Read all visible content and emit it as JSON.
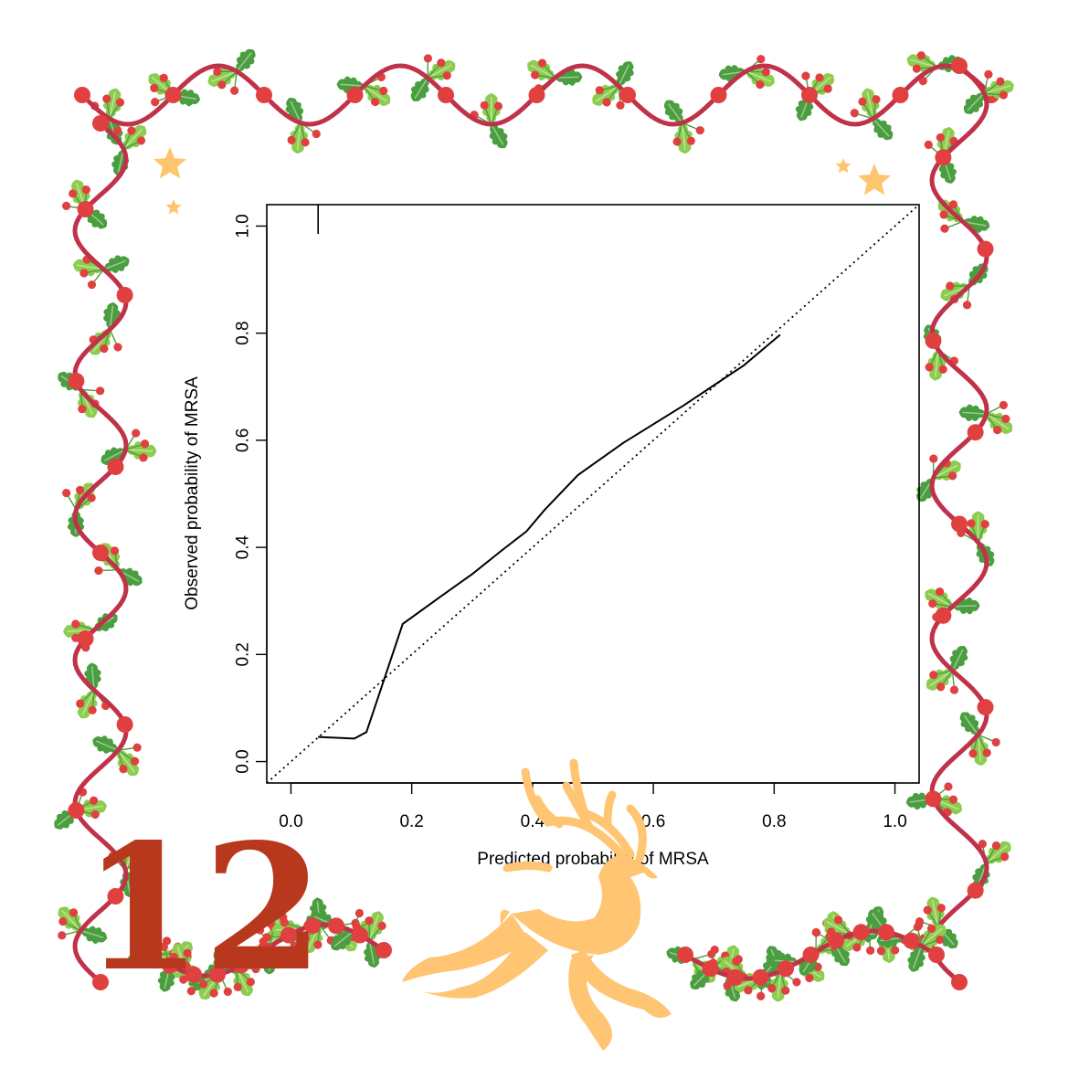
{
  "badge": {
    "number": "12"
  },
  "colors": {
    "garland": "#c0324a",
    "berry": "#e04040",
    "leaf_light": "#8ccd4f",
    "leaf_dark": "#4a9e3f",
    "star": "#ffc46e",
    "deer": "#ffc573",
    "number": "#b7381d"
  },
  "decorations": [
    "holly-garland-frame",
    "berry-clusters",
    "star-icon",
    "reindeer-silhouette"
  ],
  "chart_data": {
    "type": "line",
    "xlabel": "Predicted probability of MRSA",
    "ylabel": "Observed probability of MRSA",
    "xlim": [
      -0.04,
      1.04
    ],
    "ylim": [
      -0.04,
      1.04
    ],
    "x_ticks": [
      "0.0",
      "0.2",
      "0.4",
      "0.6",
      "0.8",
      "1.0"
    ],
    "y_ticks": [
      "0.0",
      "0.2",
      "0.4",
      "0.6",
      "0.8",
      "1.0"
    ],
    "grid": false,
    "legend": "none",
    "series": [
      {
        "style": "solid",
        "x": [
          0.045,
          0.105,
          0.125,
          0.185,
          0.25,
          0.3,
          0.35,
          0.39,
          0.42,
          0.475,
          0.55,
          0.65,
          0.75,
          0.81
        ],
        "y": [
          0.046,
          0.043,
          0.055,
          0.257,
          0.31,
          0.35,
          0.395,
          0.43,
          0.47,
          0.535,
          0.595,
          0.665,
          0.74,
          0.797
        ]
      },
      {
        "style": "dotted",
        "x": [
          -0.04,
          1.04
        ],
        "y": [
          -0.04,
          1.04
        ]
      }
    ],
    "rug": {
      "x": [
        0.045
      ]
    }
  }
}
